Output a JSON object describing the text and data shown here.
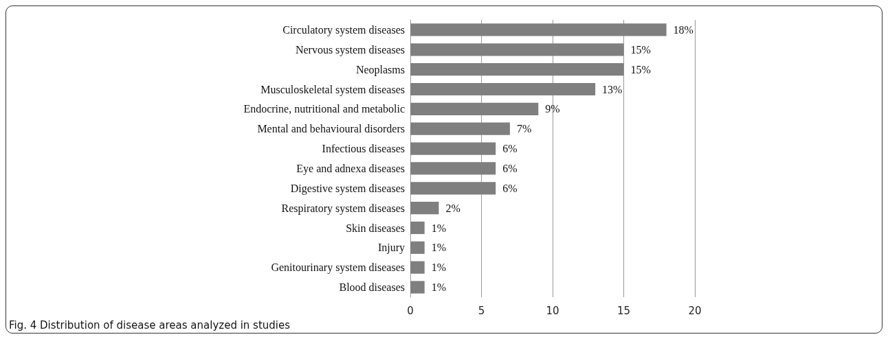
{
  "chart_data": {
    "type": "bar",
    "orientation": "horizontal",
    "categories": [
      "Circulatory system diseases",
      "Nervous system diseases",
      "Neoplasms",
      "Musculoskeletal system diseases",
      "Endocrine, nutritional and metabolic",
      "Mental and behavioural disorders",
      "Infectious diseases",
      "Eye and adnexa diseases",
      "Digestive system diseases",
      "Respiratory system diseases",
      "Skin diseases",
      "Injury",
      "Genitourinary system diseases",
      "Blood diseases"
    ],
    "values": [
      18,
      15,
      15,
      13,
      9,
      7,
      6,
      6,
      6,
      2,
      1,
      1,
      1,
      1
    ],
    "value_labels": [
      "18%",
      "15%",
      "15%",
      "13%",
      "9%",
      "7%",
      "6%",
      "6%",
      "6%",
      "2%",
      "1%",
      "1%",
      "1%",
      "1%"
    ],
    "color": "#7f7f7f",
    "xlim": [
      0,
      20
    ],
    "xticks": [
      0,
      5,
      10,
      15,
      20
    ],
    "grid": "x",
    "annotations": [
      "Fig. 4 Distribution of disease areas analyzed in studies"
    ]
  }
}
